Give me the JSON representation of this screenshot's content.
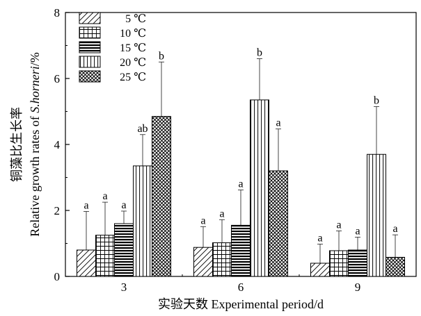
{
  "chart_data": {
    "type": "bar",
    "categories": [
      "3",
      "6",
      "9"
    ],
    "xlabel": "实验天数 Experimental period/d",
    "ylabel_cn": "铜藻比生长率",
    "ylabel_en_prefix": "Relative growth rates of ",
    "ylabel_en_italic": "S.horneri",
    "ylabel_en_suffix": "/%",
    "ylim": [
      0,
      8
    ],
    "yticks": [
      "0",
      "2",
      "4",
      "6",
      "8"
    ],
    "legend_position": "top-left",
    "error_bars": "upper",
    "series": [
      {
        "name": "5 ℃",
        "pattern": "diagonal",
        "values": [
          0.8,
          0.88,
          0.4
        ],
        "errors": [
          1.17,
          0.63,
          0.58
        ],
        "letters": [
          "a",
          "a",
          "a"
        ]
      },
      {
        "name": "10 ℃",
        "pattern": "grid",
        "values": [
          1.25,
          1.02,
          0.78
        ],
        "errors": [
          1.0,
          0.7,
          0.6
        ],
        "letters": [
          "a",
          "a",
          "a"
        ]
      },
      {
        "name": "15 ℃",
        "pattern": "horizontal",
        "values": [
          1.6,
          1.55,
          0.8
        ],
        "errors": [
          0.38,
          1.07,
          0.39
        ],
        "letters": [
          "a",
          "a",
          "a"
        ]
      },
      {
        "name": "20 ℃",
        "pattern": "vertical",
        "values": [
          3.35,
          5.35,
          3.7
        ],
        "errors": [
          0.95,
          1.25,
          1.45
        ],
        "letters": [
          "ab",
          "b",
          "b"
        ]
      },
      {
        "name": "25 ℃",
        "pattern": "crosshatch",
        "values": [
          4.85,
          3.2,
          0.58
        ],
        "errors": [
          1.65,
          1.27,
          0.68
        ],
        "letters": [
          "b",
          "a",
          "a"
        ]
      }
    ]
  }
}
